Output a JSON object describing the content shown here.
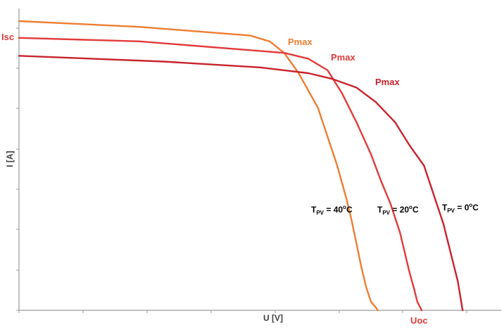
{
  "chart_data": {
    "type": "line",
    "title": "",
    "xlabel": "U [V]",
    "ylabel": "I [A]",
    "xlim": [
      0,
      100
    ],
    "ylim": [
      0,
      100
    ],
    "grid": false,
    "series": [
      {
        "name": "T_PV = 40°C",
        "label_main": "T",
        "label_sub": "PV",
        "label_eq": " = 40",
        "label_sup": "o",
        "label_unit": "C",
        "color": "#ee7d31",
        "pmax_label": "Pmax",
        "x": [
          0,
          25,
          48,
          52,
          55,
          58,
          62,
          64,
          66,
          68,
          69,
          70,
          71,
          72,
          73,
          74,
          74.4
        ],
        "y": [
          100,
          98,
          95,
          93,
          89,
          82,
          70,
          60,
          50,
          38,
          31,
          23,
          15,
          8,
          3,
          1,
          0
        ]
      },
      {
        "name": "T_PV = 20°C",
        "label_main": "T",
        "label_sub": "PV",
        "label_eq": " = 20",
        "label_sup": "o",
        "label_unit": "C",
        "color": "#e23a3a",
        "pmax_label": "Pmax",
        "x": [
          0,
          25,
          55,
          60,
          64,
          67,
          70,
          73,
          75,
          77,
          79,
          80,
          81,
          82,
          82.6,
          83.5
        ],
        "y": [
          94.2,
          93,
          89,
          87,
          83,
          75,
          65,
          54,
          45,
          37,
          27,
          20,
          13,
          7,
          3,
          0
        ]
      },
      {
        "name": "T_PV = 0°C",
        "label_main": "T",
        "label_sub": "PV",
        "label_eq": " = 0",
        "label_sup": "o",
        "label_unit": "C",
        "color": "#c8232c",
        "pmax_label": "Pmax",
        "x": [
          0,
          30,
          50,
          60,
          65,
          70,
          74,
          78,
          81,
          84,
          86,
          88,
          89.5,
          91,
          92
        ],
        "y": [
          88,
          86,
          84,
          82,
          80,
          77,
          72,
          65,
          57,
          50,
          40,
          30,
          20,
          10,
          0
        ]
      }
    ],
    "annotations": {
      "isc": {
        "text": "Isc",
        "color": "#e23a3a"
      },
      "uoc": {
        "text": "Uoc",
        "color": "#e23a3a"
      }
    }
  }
}
